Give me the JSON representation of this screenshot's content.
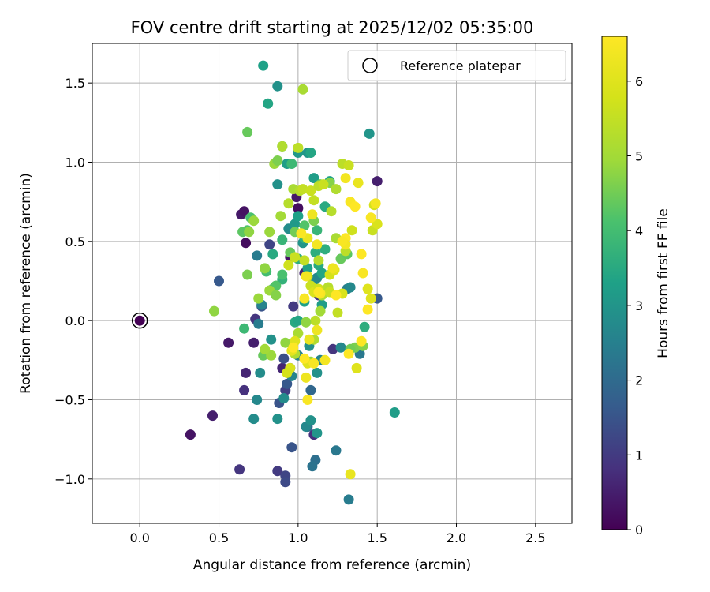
{
  "chart_data": {
    "type": "scatter",
    "title": "FOV centre drift starting at 2025/12/02 05:35:00",
    "xlabel": "Angular distance from reference (arcmin)",
    "ylabel": "Rotation from reference (arcmin)",
    "xlim": [
      -0.3,
      2.73
    ],
    "ylim": [
      -1.28,
      1.75
    ],
    "xticks": [
      0.0,
      0.5,
      1.0,
      1.5,
      2.0,
      2.5
    ],
    "xtick_labels": [
      "0.0",
      "0.5",
      "1.0",
      "1.5",
      "2.0",
      "2.5"
    ],
    "yticks": [
      -1.0,
      -0.5,
      0.0,
      0.5,
      1.0,
      1.5
    ],
    "ytick_labels": [
      "−1.0",
      "−0.5",
      "0.0",
      "0.5",
      "1.0",
      "1.5"
    ],
    "grid": true,
    "legend": {
      "position": "top-right",
      "entries": [
        "Reference platepar"
      ]
    },
    "reference_point": {
      "x": 0.0,
      "y": 0.0,
      "t": 0.0
    },
    "colorbar": {
      "label": "Hours from first FF file",
      "min": 0,
      "max": 6.6,
      "colormap": "viridis",
      "ticks": [
        0,
        1,
        2,
        3,
        4,
        5,
        6
      ],
      "tick_labels": [
        "0",
        "1",
        "2",
        "3",
        "4",
        "5",
        "6"
      ]
    },
    "points": [
      [
        0.0,
        0.0,
        0.0
      ],
      [
        0.32,
        -0.72,
        0.3
      ],
      [
        0.46,
        -0.6,
        0.5
      ],
      [
        0.56,
        -0.14,
        0.4
      ],
      [
        0.64,
        0.67,
        0.4
      ],
      [
        0.66,
        0.69,
        0.3
      ],
      [
        0.67,
        0.49,
        0.2
      ],
      [
        0.67,
        -0.33,
        0.6
      ],
      [
        0.66,
        -0.44,
        0.8
      ],
      [
        0.63,
        -0.94,
        0.9
      ],
      [
        0.72,
        -0.14,
        0.5
      ],
      [
        0.73,
        0.01,
        0.9
      ],
      [
        0.87,
        -0.95,
        1.0
      ],
      [
        0.92,
        -0.98,
        1.2
      ],
      [
        0.92,
        -1.02,
        1.3
      ],
      [
        0.96,
        -0.8,
        1.5
      ],
      [
        0.92,
        -0.44,
        1.1
      ],
      [
        0.95,
        -0.3,
        1.2
      ],
      [
        0.9,
        -0.3,
        0.6
      ],
      [
        0.97,
        0.09,
        1.0
      ],
      [
        0.99,
        0.78,
        0.4
      ],
      [
        1.0,
        0.71,
        0.2
      ],
      [
        0.95,
        0.4,
        0.3
      ],
      [
        0.82,
        0.48,
        1.2
      ],
      [
        1.04,
        0.3,
        0.6
      ],
      [
        1.1,
        -0.72,
        0.8
      ],
      [
        1.13,
        0.16,
        0.9
      ],
      [
        1.5,
        0.88,
        0.5
      ],
      [
        1.5,
        0.14,
        1.6
      ],
      [
        1.22,
        -0.18,
        0.9
      ],
      [
        0.5,
        0.25,
        1.6
      ],
      [
        0.74,
        0.41,
        2.4
      ],
      [
        0.77,
        0.09,
        1.5
      ],
      [
        0.88,
        -0.52,
        1.5
      ],
      [
        0.91,
        -0.24,
        1.4
      ],
      [
        0.93,
        -0.4,
        1.6
      ],
      [
        1.06,
        -0.67,
        1.8
      ],
      [
        1.08,
        -0.44,
        1.9
      ],
      [
        1.11,
        -0.88,
        2.1
      ],
      [
        1.09,
        -0.92,
        2.2
      ],
      [
        1.24,
        -0.82,
        2.3
      ],
      [
        1.32,
        -1.13,
        2.4
      ],
      [
        1.39,
        -0.21,
        2.3
      ],
      [
        0.74,
        -0.5,
        2.7
      ],
      [
        0.72,
        -0.62,
        2.8
      ],
      [
        0.76,
        -0.33,
        2.8
      ],
      [
        0.77,
        0.1,
        2.6
      ],
      [
        0.75,
        -0.02,
        2.4
      ],
      [
        0.83,
        -0.12,
        2.9
      ],
      [
        0.87,
        -0.62,
        2.9
      ],
      [
        0.91,
        -0.49,
        2.8
      ],
      [
        0.96,
        -0.35,
        2.6
      ],
      [
        1.0,
        -0.22,
        2.5
      ],
      [
        1.07,
        -0.16,
        2.9
      ],
      [
        1.05,
        -0.67,
        2.7
      ],
      [
        1.08,
        -0.63,
        2.9
      ],
      [
        1.12,
        -0.71,
        3.0
      ],
      [
        1.12,
        -0.33,
        2.9
      ],
      [
        1.14,
        -0.25,
        2.6
      ],
      [
        1.27,
        -0.17,
        2.7
      ],
      [
        1.31,
        0.2,
        2.5
      ],
      [
        1.33,
        0.21,
        2.7
      ],
      [
        1.45,
        1.18,
        3.0
      ],
      [
        0.87,
        1.48,
        2.9
      ],
      [
        0.78,
        1.61,
        3.3
      ],
      [
        1.06,
        1.06,
        3.0
      ],
      [
        1.1,
        0.9,
        3.2
      ],
      [
        1.08,
        1.06,
        3.4
      ],
      [
        1.0,
        1.06,
        3.1
      ],
      [
        0.93,
        0.99,
        3.2
      ],
      [
        0.87,
        0.86,
        2.9
      ],
      [
        0.94,
        0.58,
        2.8
      ],
      [
        0.98,
        0.61,
        3.1
      ],
      [
        1.0,
        0.66,
        3.3
      ],
      [
        1.03,
        0.49,
        3.0
      ],
      [
        1.06,
        0.33,
        3.3
      ],
      [
        1.1,
        0.25,
        3.1
      ],
      [
        1.12,
        0.27,
        2.7
      ],
      [
        1.15,
        0.1,
        3.2
      ],
      [
        0.98,
        -0.01,
        3.5
      ],
      [
        1.0,
        0.0,
        3.4
      ],
      [
        1.04,
        0.12,
        3.3
      ],
      [
        1.0,
        0.39,
        3.6
      ],
      [
        1.04,
        0.52,
        3.7
      ],
      [
        1.12,
        0.57,
        3.8
      ],
      [
        1.11,
        0.43,
        3.6
      ],
      [
        1.13,
        0.35,
        3.5
      ],
      [
        1.15,
        0.3,
        3.4
      ],
      [
        1.17,
        0.45,
        3.6
      ],
      [
        1.2,
        0.88,
        3.3
      ],
      [
        1.17,
        0.72,
        3.5
      ],
      [
        1.42,
        -0.04,
        3.6
      ],
      [
        1.61,
        -0.58,
        3.2
      ],
      [
        0.81,
        1.37,
        3.4
      ],
      [
        0.9,
        1.1,
        3.8
      ],
      [
        0.96,
        0.99,
        3.9
      ],
      [
        0.84,
        0.42,
        3.5
      ],
      [
        0.9,
        0.51,
        3.8
      ],
      [
        0.9,
        0.26,
        3.7
      ],
      [
        0.84,
        0.2,
        3.8
      ],
      [
        0.7,
        0.65,
        4.1
      ],
      [
        0.68,
        0.57,
        4.2
      ],
      [
        0.65,
        0.56,
        4.3
      ],
      [
        0.66,
        -0.05,
        3.9
      ],
      [
        0.8,
        0.31,
        4.0
      ],
      [
        0.86,
        0.22,
        4.2
      ],
      [
        0.9,
        0.29,
        4.1
      ],
      [
        0.95,
        0.43,
        4.4
      ],
      [
        0.98,
        0.56,
        4.5
      ],
      [
        1.04,
        0.6,
        4.2
      ],
      [
        1.1,
        0.63,
        4.6
      ],
      [
        1.14,
        0.86,
        4.5
      ],
      [
        1.2,
        0.87,
        4.7
      ],
      [
        1.27,
        0.39,
        4.4
      ],
      [
        1.31,
        0.42,
        4.3
      ],
      [
        1.36,
        -0.17,
        4.6
      ],
      [
        1.41,
        -0.16,
        4.7
      ],
      [
        1.33,
        -0.18,
        4.5
      ],
      [
        1.08,
        -0.26,
        4.8
      ],
      [
        0.78,
        -0.22,
        4.4
      ],
      [
        0.68,
        1.19,
        4.4
      ],
      [
        0.85,
        0.99,
        4.9
      ],
      [
        0.87,
        1.01,
        4.6
      ],
      [
        0.82,
        0.56,
        4.9
      ],
      [
        0.79,
        0.33,
        4.8
      ],
      [
        0.82,
        0.19,
        4.9
      ],
      [
        0.86,
        0.16,
        4.7
      ],
      [
        0.83,
        -0.22,
        4.9
      ],
      [
        0.79,
        -0.18,
        5.0
      ],
      [
        0.92,
        -0.14,
        4.8
      ],
      [
        0.98,
        -0.21,
        5.2
      ],
      [
        1.0,
        -0.08,
        5.1
      ],
      [
        1.05,
        -0.01,
        5.3
      ],
      [
        1.11,
        0.0,
        5.4
      ],
      [
        1.14,
        0.06,
        5.0
      ],
      [
        1.15,
        0.16,
        5.2
      ],
      [
        1.19,
        0.21,
        5.3
      ],
      [
        1.1,
        -0.12,
        5.2
      ],
      [
        1.05,
        -0.01,
        4.8
      ],
      [
        0.47,
        0.06,
        4.8
      ],
      [
        0.68,
        0.29,
        4.6
      ],
      [
        0.69,
        0.56,
        4.8
      ],
      [
        0.72,
        0.63,
        4.9
      ],
      [
        0.75,
        0.14,
        4.9
      ],
      [
        0.89,
        0.66,
        5.0
      ],
      [
        0.94,
        0.74,
        5.3
      ],
      [
        0.97,
        0.83,
        5.1
      ],
      [
        1.01,
        0.82,
        5.3
      ],
      [
        1.03,
        0.83,
        5.5
      ],
      [
        1.08,
        0.82,
        5.6
      ],
      [
        1.1,
        0.76,
        5.5
      ],
      [
        1.13,
        0.85,
        5.4
      ],
      [
        1.16,
        0.86,
        5.6
      ],
      [
        1.21,
        0.69,
        5.3
      ],
      [
        1.24,
        0.83,
        5.2
      ],
      [
        1.28,
        0.99,
        5.4
      ],
      [
        1.32,
        0.98,
        5.6
      ],
      [
        1.3,
        0.44,
        5.4
      ],
      [
        1.24,
        0.52,
        5.1
      ],
      [
        1.13,
        0.38,
        5.3
      ],
      [
        1.03,
        1.46,
        5.1
      ],
      [
        1.0,
        1.09,
        5.4
      ],
      [
        0.9,
        1.1,
        5.2
      ],
      [
        0.94,
        0.35,
        5.7
      ],
      [
        0.98,
        0.4,
        5.6
      ],
      [
        1.04,
        0.38,
        5.5
      ],
      [
        1.06,
        0.28,
        5.8
      ],
      [
        1.08,
        0.22,
        5.6
      ],
      [
        1.1,
        0.18,
        5.9
      ],
      [
        1.13,
        0.2,
        5.7
      ],
      [
        1.2,
        0.18,
        5.6
      ],
      [
        1.25,
        0.05,
        5.5
      ],
      [
        1.2,
        0.29,
        5.8
      ],
      [
        1.23,
        0.32,
        6.0
      ],
      [
        1.28,
        0.17,
        5.9
      ],
      [
        1.34,
        0.57,
        5.7
      ],
      [
        1.47,
        0.57,
        5.6
      ],
      [
        1.48,
        0.73,
        5.8
      ],
      [
        1.5,
        0.61,
        5.9
      ],
      [
        1.46,
        0.14,
        6.0
      ],
      [
        1.44,
        0.2,
        6.0
      ],
      [
        0.98,
        -0.13,
        6.0
      ],
      [
        0.96,
        -0.19,
        6.1
      ],
      [
        0.95,
        -0.3,
        5.9
      ],
      [
        0.93,
        -0.33,
        5.8
      ],
      [
        1.06,
        -0.27,
        6.0
      ],
      [
        1.07,
        -0.12,
        6.2
      ],
      [
        1.12,
        -0.06,
        6.3
      ],
      [
        1.17,
        -0.25,
        6.4
      ],
      [
        1.05,
        -0.36,
        6.3
      ],
      [
        1.06,
        -0.5,
        6.5
      ],
      [
        1.33,
        -0.97,
        6.2
      ],
      [
        1.37,
        -0.3,
        6.0
      ],
      [
        1.38,
        0.87,
        6.2
      ],
      [
        1.3,
        0.9,
        6.4
      ],
      [
        1.33,
        0.75,
        6.5
      ],
      [
        1.3,
        0.52,
        6.6
      ],
      [
        1.3,
        0.48,
        6.4
      ],
      [
        1.28,
        0.5,
        6.5
      ],
      [
        1.22,
        0.33,
        6.3
      ],
      [
        1.24,
        0.16,
        6.6
      ],
      [
        1.14,
        0.17,
        6.5
      ],
      [
        1.05,
        0.28,
        6.4
      ],
      [
        1.04,
        0.14,
        6.5
      ],
      [
        1.06,
        0.52,
        6.2
      ],
      [
        1.09,
        0.67,
        6.3
      ],
      [
        1.12,
        0.48,
        6.4
      ],
      [
        1.4,
        0.42,
        6.6
      ],
      [
        1.41,
        0.3,
        6.5
      ],
      [
        1.44,
        0.07,
        6.6
      ],
      [
        1.46,
        0.65,
        6.5
      ],
      [
        1.49,
        0.74,
        6.4
      ],
      [
        1.36,
        0.72,
        6.6
      ],
      [
        1.32,
        -0.21,
        6.6
      ],
      [
        1.4,
        -0.13,
        6.6
      ],
      [
        1.04,
        -0.24,
        6.6
      ],
      [
        1.1,
        -0.27,
        6.5
      ],
      [
        1.13,
        0.18,
        6.6
      ],
      [
        1.02,
        0.55,
        6.5
      ],
      [
        0.97,
        -0.17,
        6.6
      ]
    ]
  }
}
